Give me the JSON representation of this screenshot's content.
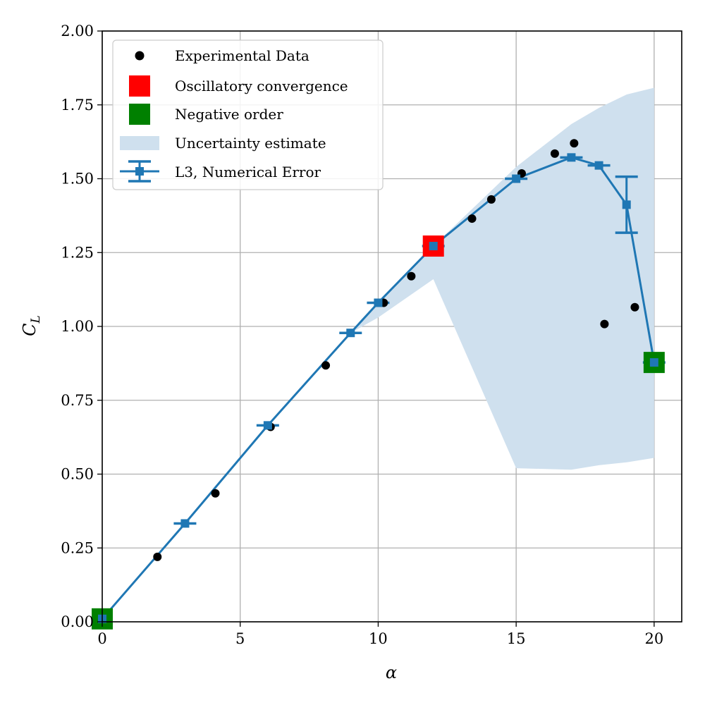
{
  "chart_data": {
    "type": "line",
    "xlabel": "α",
    "ylabel": "C",
    "ylabel_subscript": "L",
    "xlim": [
      0,
      21
    ],
    "ylim": [
      0,
      2
    ],
    "xticks": [
      0,
      5,
      10,
      15,
      20
    ],
    "xtick_labels": [
      "0",
      "5",
      "10",
      "15",
      "20"
    ],
    "yticks": [
      0,
      0.25,
      0.5,
      0.75,
      1.0,
      1.25,
      1.5,
      1.75,
      2.0
    ],
    "ytick_labels": [
      "0.00",
      "0.25",
      "0.50",
      "0.75",
      "1.00",
      "1.25",
      "1.50",
      "1.75",
      "2.00"
    ],
    "grid": true,
    "legend_position": "top-left",
    "colors": {
      "line": "#1f77b4",
      "band": "#cfe0ee",
      "experimental": "#000000",
      "oscillatory": "#ff0000",
      "negative": "#008000",
      "grid": "#b0b0b0"
    },
    "series": [
      {
        "name": "Experimental Data",
        "kind": "scatter",
        "x": [
          0.0,
          2.0,
          4.1,
          6.1,
          8.1,
          10.2,
          11.2,
          13.4,
          14.1,
          15.2,
          16.4,
          17.1,
          18.2,
          19.3
        ],
        "y": [
          0.0,
          0.22,
          0.435,
          0.66,
          0.868,
          1.08,
          1.17,
          1.365,
          1.43,
          1.518,
          1.585,
          1.62,
          1.008,
          1.065
        ]
      },
      {
        "name": "L3, Numerical Error",
        "kind": "errorbar-line",
        "x": [
          0,
          3,
          6,
          9,
          10,
          12,
          15,
          17,
          18,
          19,
          20
        ],
        "y": [
          0.01,
          0.333,
          0.665,
          0.978,
          1.08,
          1.272,
          1.5,
          1.572,
          1.545,
          1.412,
          0.878
        ],
        "yerr": [
          0.0,
          0.0,
          0.0,
          0.0,
          0.0,
          0.0,
          0.0,
          0.0,
          0.0,
          0.095,
          0.0
        ]
      },
      {
        "name": "Oscillatory convergence",
        "kind": "marker",
        "x": [
          12
        ],
        "y": [
          1.272
        ]
      },
      {
        "name": "Negative order",
        "kind": "marker",
        "x": [
          0,
          20
        ],
        "y": [
          0.01,
          0.878
        ]
      },
      {
        "name": "Uncertainty estimate",
        "kind": "band",
        "x": [
          6,
          9,
          10,
          12,
          15,
          17,
          18,
          19,
          20
        ],
        "lower": [
          0.665,
          0.978,
          1.03,
          1.16,
          0.52,
          0.515,
          0.53,
          0.54,
          0.555
        ],
        "upper": [
          0.665,
          0.978,
          1.08,
          1.272,
          1.54,
          1.685,
          1.74,
          1.785,
          1.808
        ]
      }
    ],
    "legend": [
      "Experimental Data",
      "Oscillatory convergence",
      "Negative order",
      "Uncertainty estimate",
      "L3, Numerical Error"
    ]
  }
}
